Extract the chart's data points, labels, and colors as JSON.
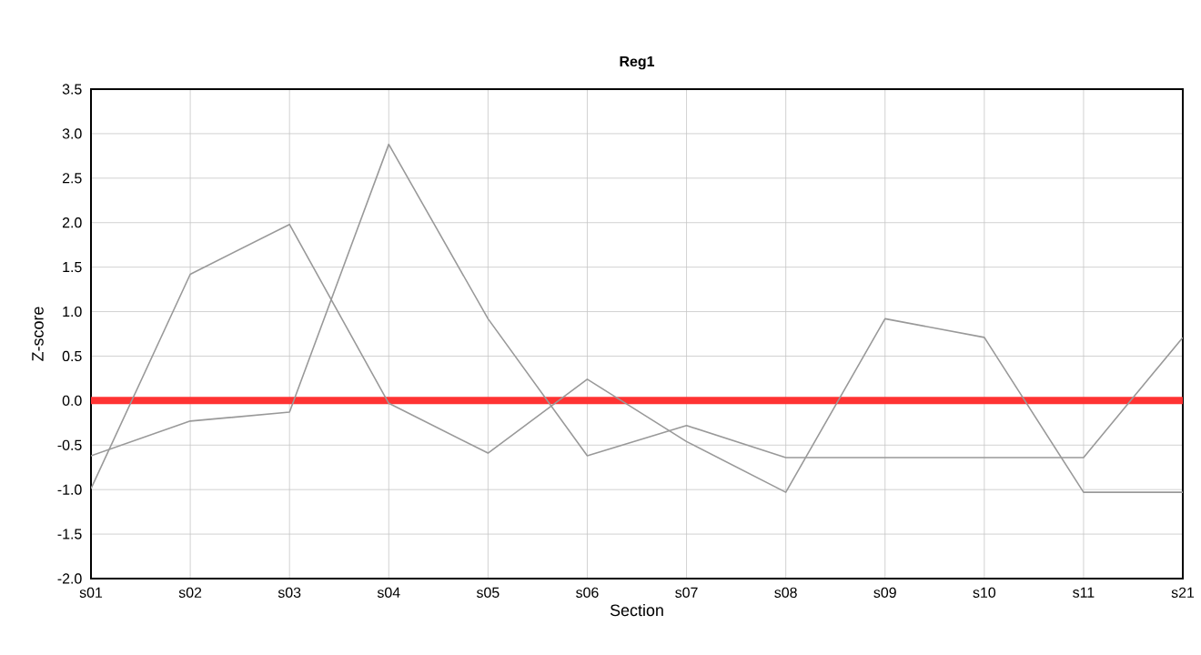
{
  "chart_data": {
    "type": "line",
    "title": "Reg1",
    "xlabel": "Section",
    "ylabel": "Z-score",
    "categories": [
      "s01",
      "s02",
      "s03",
      "s04",
      "s05",
      "s06",
      "s07",
      "s08",
      "s09",
      "s10",
      "s11",
      "s21"
    ],
    "series": [
      {
        "color": "#999999",
        "values": [
          -0.99,
          1.42,
          1.98,
          -0.03,
          -0.59,
          0.24,
          -0.46,
          -1.03,
          0.92,
          0.71,
          -1.03,
          -1.03
        ]
      },
      {
        "color": "#999999",
        "values": [
          -0.62,
          -0.23,
          -0.13,
          2.88,
          0.92,
          -0.62,
          -0.28,
          -0.64,
          -0.64,
          -0.64,
          -0.64,
          0.71
        ]
      }
    ],
    "ylim": [
      -2.0,
      3.5
    ],
    "yticks": [
      {
        "value": -2.0,
        "label": "-2.0"
      },
      {
        "value": -1.5,
        "label": "-1.5"
      },
      {
        "value": -1.0,
        "label": "-1.0"
      },
      {
        "value": -0.5,
        "label": "-0.5"
      },
      {
        "value": 0.0,
        "label": "0.0"
      },
      {
        "value": 0.5,
        "label": "0.5"
      },
      {
        "value": 1.0,
        "label": "1.0"
      },
      {
        "value": 1.5,
        "label": "1.5"
      },
      {
        "value": 2.0,
        "label": "2.0"
      },
      {
        "value": 2.5,
        "label": "2.5"
      },
      {
        "value": 3.0,
        "label": "3.0"
      },
      {
        "value": 3.5,
        "label": "3.5"
      }
    ],
    "ref_lines": [
      {
        "axis": "y",
        "value": 0,
        "color": "#ff3333"
      }
    ],
    "grid": true,
    "marker": "none",
    "line_style": "solid"
  }
}
